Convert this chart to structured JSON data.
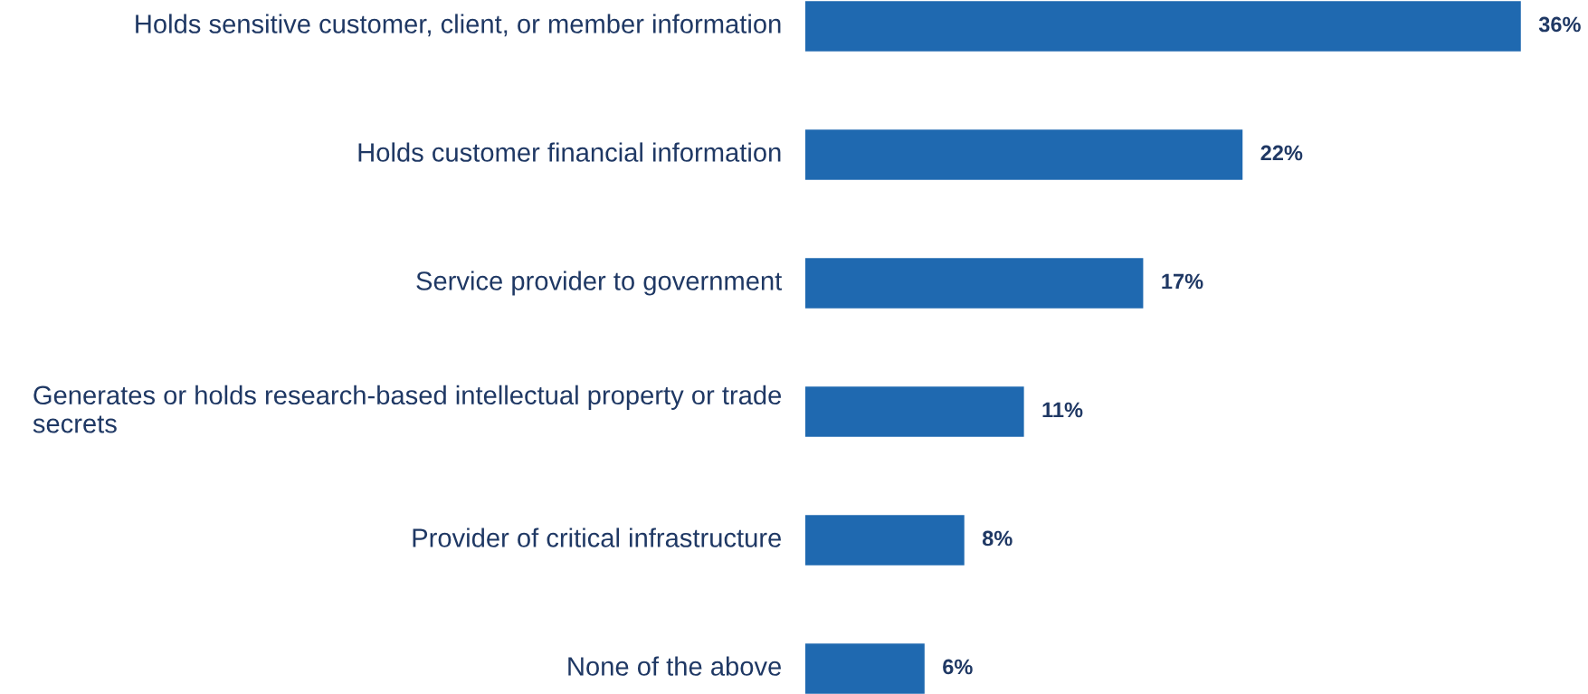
{
  "chart_data": {
    "type": "bar",
    "orientation": "horizontal",
    "categories": [
      "Holds sensitive customer, client, or member information",
      "Holds customer financial information",
      "Service provider to government",
      "Generates or holds research-based intellectual property or trade secrets",
      "Provider of critical infrastructure",
      "None of the above"
    ],
    "values": [
      36,
      22,
      17,
      11,
      8,
      6
    ],
    "color": "#1f69b0",
    "data_labels": true,
    "value_labels": [
      "36%",
      "22%",
      "17%",
      "11%",
      "8%",
      "6%"
    ]
  }
}
